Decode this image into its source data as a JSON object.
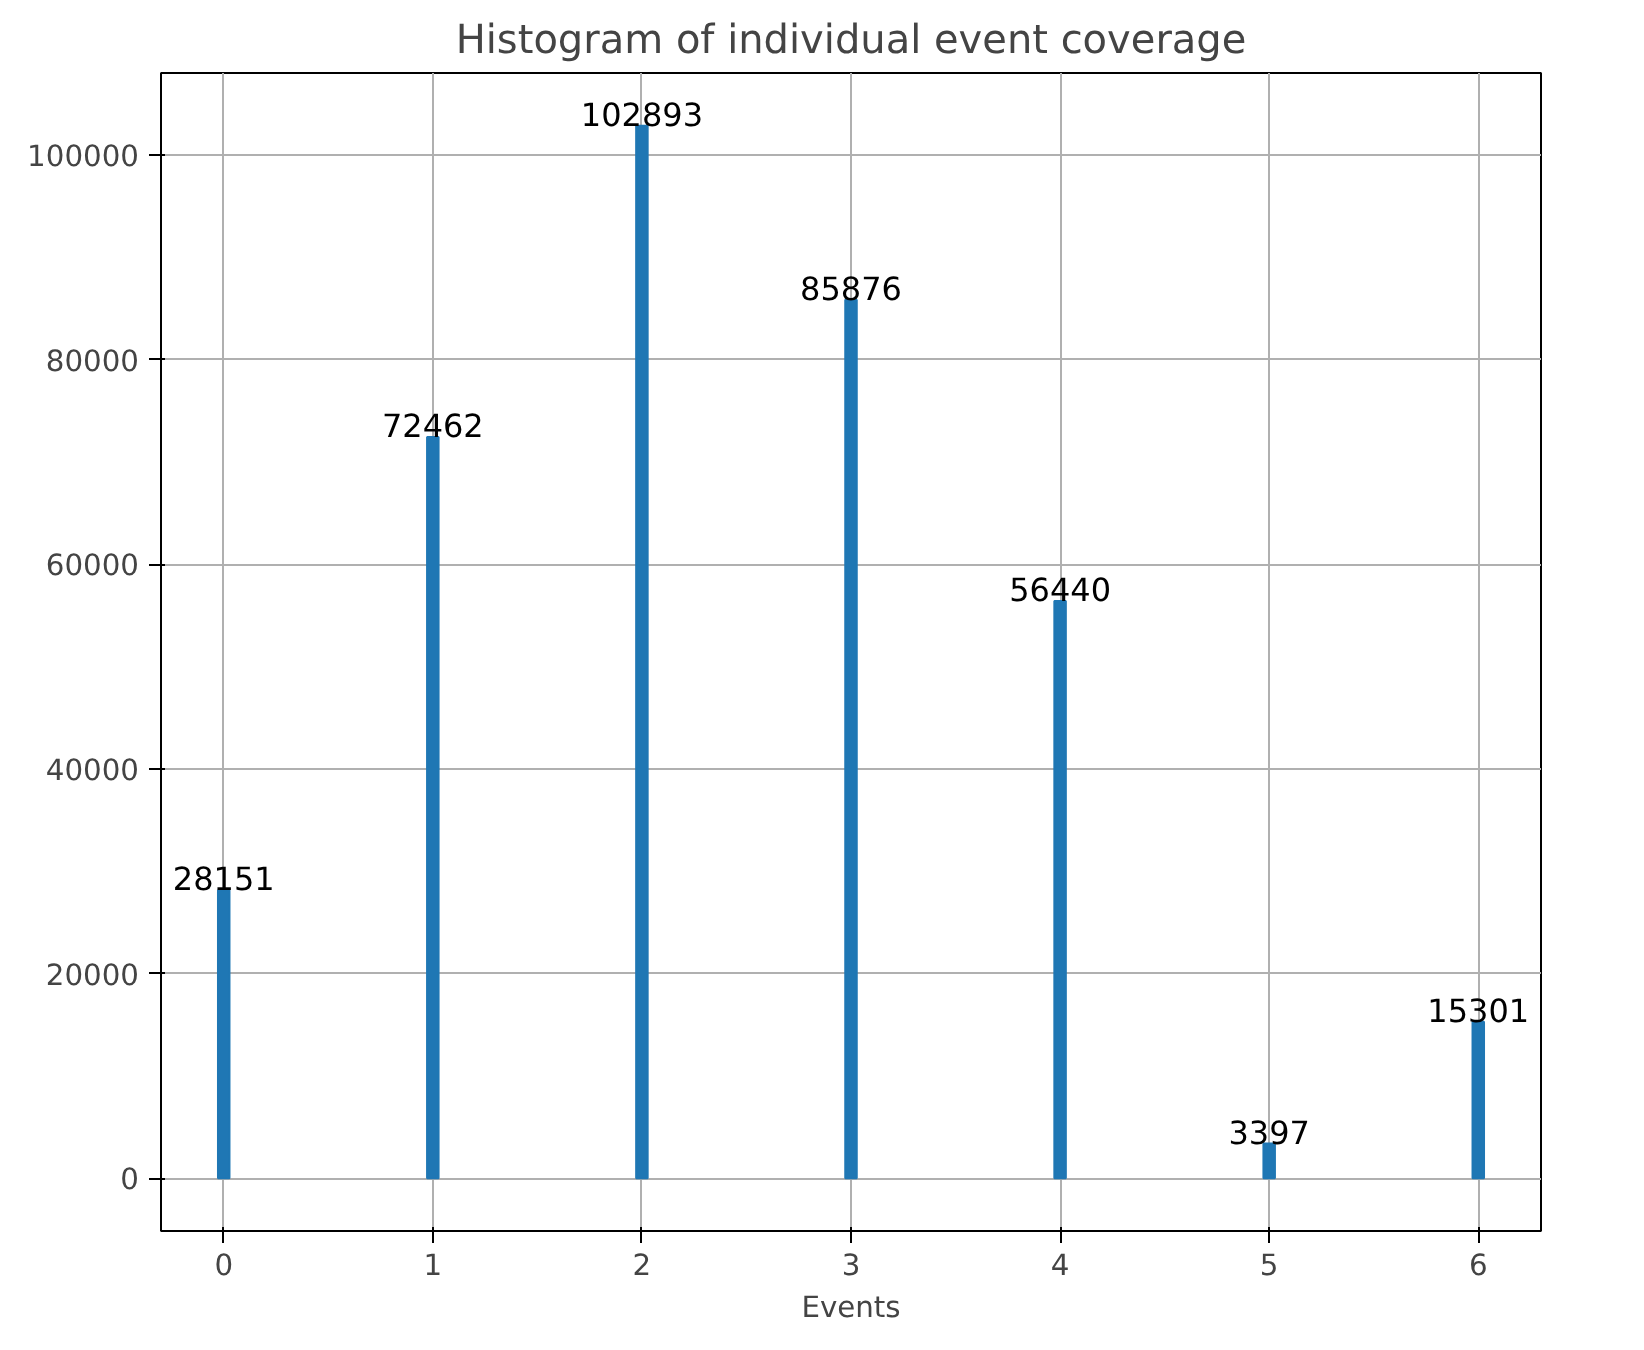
{
  "chart_data": {
    "type": "bar",
    "title": "Histogram of individual event coverage",
    "xlabel": "Events",
    "x": [
      0,
      1,
      2,
      3,
      4,
      5,
      6
    ],
    "values": [
      28151,
      72462,
      102893,
      85876,
      56440,
      3397,
      15301
    ],
    "color": "#1f77b4",
    "xlim": [
      -0.3,
      6.3
    ],
    "ylim": [
      -5144,
      108038
    ],
    "xticks": [
      0,
      1,
      2,
      3,
      4,
      5,
      6
    ],
    "yticks": [
      0,
      20000,
      40000,
      60000,
      80000,
      100000
    ],
    "grid": true,
    "data_labels": true
  }
}
